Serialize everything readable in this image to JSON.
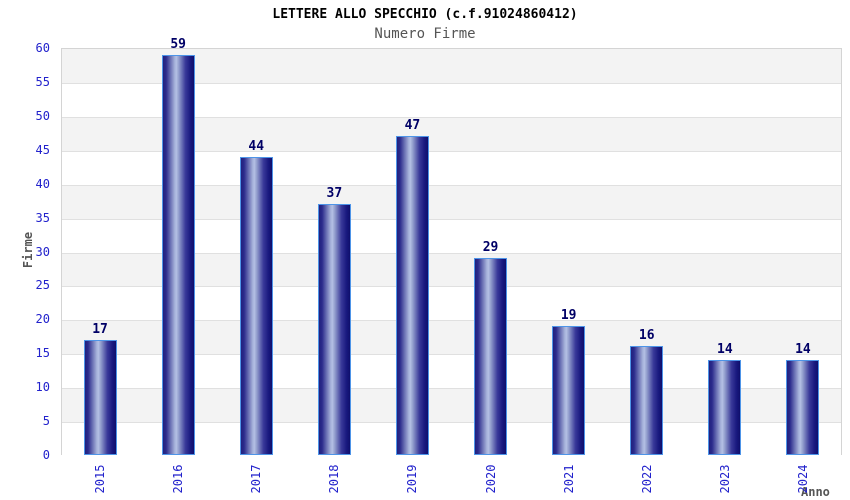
{
  "chart_data": {
    "type": "bar",
    "title": "LETTERE ALLO SPECCHIO (c.f.91024860412)",
    "subtitle": "Numero Firme",
    "xlabel": "Anno",
    "ylabel": "Firme",
    "categories": [
      "2015",
      "2016",
      "2017",
      "2018",
      "2019",
      "2020",
      "2021",
      "2022",
      "2023",
      "2024"
    ],
    "values": [
      17,
      59,
      44,
      37,
      47,
      29,
      19,
      16,
      14,
      14
    ],
    "ylim": [
      0,
      60
    ],
    "ytick_step": 5,
    "grid": "horizontal-gridlines-with-alternating-bands",
    "legend": "none",
    "colors": {
      "tick_label": "#2222CC",
      "value_label": "#000066",
      "title": "#000000",
      "subtitle": "#555555",
      "axis_title": "#555555",
      "band_gray": "#F3F3F3",
      "band_white": "#FFFFFF",
      "gridline": "#E0E0E0",
      "plot_border": "#D4D4D4",
      "bar_border": "#4D94E8",
      "bar_gradient_dark": "#20207E",
      "bar_gradient_light": "#B4C0E4"
    }
  }
}
